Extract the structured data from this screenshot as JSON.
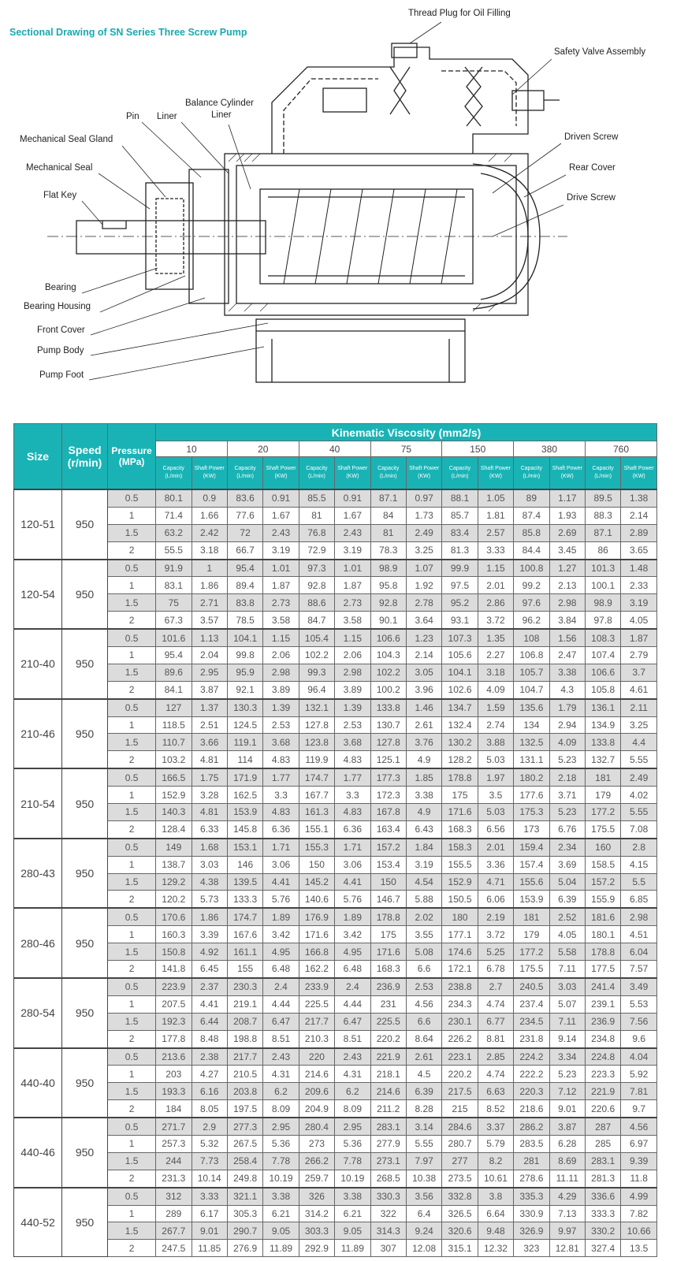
{
  "title": "Sectional Drawing of SN Series Three Screw Pump",
  "drawing": {
    "labels": [
      "Thread Plug for Oil Filling",
      "Safety Valve Assembly",
      "Balance Cylinder",
      "Liner",
      "Pin",
      "Liner",
      "Driven Screw",
      "Mechanical Seal Gland",
      "Mechanical Seal",
      "Rear Cover",
      "Flat Key",
      "Drive Screw",
      "Bearing",
      "Bearing Housing",
      "Front Cover",
      "Pump Body",
      "Pump Foot"
    ]
  },
  "table": {
    "headers": {
      "size": "Size",
      "speed": "Speed (r/min)",
      "pressure": "Pressure (MPa)",
      "viscosity": "Kinematic Viscosity (mm2/s)",
      "capacity": "Capacity (L/min)",
      "shaft_power": "Shaft Power (KW)"
    },
    "viscosities": [
      "10",
      "20",
      "40",
      "75",
      "150",
      "380",
      "760"
    ],
    "groups": [
      {
        "size": "120-51",
        "speed": "950",
        "rows": [
          [
            "0.5",
            "80.1",
            "0.9",
            "83.6",
            "0.91",
            "85.5",
            "0.91",
            "87.1",
            "0.97",
            "88.1",
            "1.05",
            "89",
            "1.17",
            "89.5",
            "1.38"
          ],
          [
            "1",
            "71.4",
            "1.66",
            "77.6",
            "1.67",
            "81",
            "1.67",
            "84",
            "1.73",
            "85.7",
            "1.81",
            "87.4",
            "1.93",
            "88.3",
            "2.14"
          ],
          [
            "1.5",
            "63.2",
            "2.42",
            "72",
            "2.43",
            "76.8",
            "2.43",
            "81",
            "2.49",
            "83.4",
            "2.57",
            "85.8",
            "2.69",
            "87.1",
            "2.89"
          ],
          [
            "2",
            "55.5",
            "3.18",
            "66.7",
            "3.19",
            "72.9",
            "3.19",
            "78.3",
            "3.25",
            "81.3",
            "3.33",
            "84.4",
            "3.45",
            "86",
            "3.65"
          ]
        ]
      },
      {
        "size": "120-54",
        "speed": "950",
        "rows": [
          [
            "0.5",
            "91.9",
            "1",
            "95.4",
            "1.01",
            "97.3",
            "1.01",
            "98.9",
            "1.07",
            "99.9",
            "1.15",
            "100.8",
            "1.27",
            "101.3",
            "1.48"
          ],
          [
            "1",
            "83.1",
            "1.86",
            "89.4",
            "1.87",
            "92.8",
            "1.87",
            "95.8",
            "1.92",
            "97.5",
            "2.01",
            "99.2",
            "2.13",
            "100.1",
            "2.33"
          ],
          [
            "1.5",
            "75",
            "2.71",
            "83.8",
            "2.73",
            "88.6",
            "2.73",
            "92.8",
            "2.78",
            "95.2",
            "2.86",
            "97.6",
            "2.98",
            "98.9",
            "3.19"
          ],
          [
            "2",
            "67.3",
            "3.57",
            "78.5",
            "3.58",
            "84.7",
            "3.58",
            "90.1",
            "3.64",
            "93.1",
            "3.72",
            "96.2",
            "3.84",
            "97.8",
            "4.05"
          ]
        ]
      },
      {
        "size": "210-40",
        "speed": "950",
        "rows": [
          [
            "0.5",
            "101.6",
            "1.13",
            "104.1",
            "1.15",
            "105.4",
            "1.15",
            "106.6",
            "1.23",
            "107.3",
            "1.35",
            "108",
            "1.56",
            "108.3",
            "1.87"
          ],
          [
            "1",
            "95.4",
            "2.04",
            "99.8",
            "2.06",
            "102.2",
            "2.06",
            "104.3",
            "2.14",
            "105.6",
            "2.27",
            "106.8",
            "2.47",
            "107.4",
            "2.79"
          ],
          [
            "1.5",
            "89.6",
            "2.95",
            "95.9",
            "2.98",
            "99.3",
            "2.98",
            "102.2",
            "3.05",
            "104.1",
            "3.18",
            "105.7",
            "3.38",
            "106.6",
            "3.7"
          ],
          [
            "2",
            "84.1",
            "3.87",
            "92.1",
            "3.89",
            "96.4",
            "3.89",
            "100.2",
            "3.96",
            "102.6",
            "4.09",
            "104.7",
            "4.3",
            "105.8",
            "4.61"
          ]
        ]
      },
      {
        "size": "210-46",
        "speed": "950",
        "rows": [
          [
            "0.5",
            "127",
            "1.37",
            "130.3",
            "1.39",
            "132.1",
            "1.39",
            "133.8",
            "1.46",
            "134.7",
            "1.59",
            "135.6",
            "1.79",
            "136.1",
            "2.11"
          ],
          [
            "1",
            "118.5",
            "2.51",
            "124.5",
            "2.53",
            "127.8",
            "2.53",
            "130.7",
            "2.61",
            "132.4",
            "2.74",
            "134",
            "2.94",
            "134.9",
            "3.25"
          ],
          [
            "1.5",
            "110.7",
            "3.66",
            "119.1",
            "3.68",
            "123.8",
            "3.68",
            "127.8",
            "3.76",
            "130.2",
            "3.88",
            "132.5",
            "4.09",
            "133.8",
            "4.4"
          ],
          [
            "2",
            "103.2",
            "4.81",
            "114",
            "4.83",
            "119.9",
            "4.83",
            "125.1",
            "4.9",
            "128.2",
            "5.03",
            "131.1",
            "5.23",
            "132.7",
            "5.55"
          ]
        ]
      },
      {
        "size": "210-54",
        "speed": "950",
        "rows": [
          [
            "0.5",
            "166.5",
            "1.75",
            "171.9",
            "1.77",
            "174.7",
            "1.77",
            "177.3",
            "1.85",
            "178.8",
            "1.97",
            "180.2",
            "2.18",
            "181",
            "2.49"
          ],
          [
            "1",
            "152.9",
            "3.28",
            "162.5",
            "3.3",
            "167.7",
            "3.3",
            "172.3",
            "3.38",
            "175",
            "3.5",
            "177.6",
            "3.71",
            "179",
            "4.02"
          ],
          [
            "1.5",
            "140.3",
            "4.81",
            "153.9",
            "4.83",
            "161.3",
            "4.83",
            "167.8",
            "4.9",
            "171.6",
            "5.03",
            "175.3",
            "5.23",
            "177.2",
            "5.55"
          ],
          [
            "2",
            "128.4",
            "6.33",
            "145.8",
            "6.36",
            "155.1",
            "6.36",
            "163.4",
            "6.43",
            "168.3",
            "6.56",
            "173",
            "6.76",
            "175.5",
            "7.08"
          ]
        ]
      },
      {
        "size": "280-43",
        "speed": "950",
        "rows": [
          [
            "0.5",
            "149",
            "1.68",
            "153.1",
            "1.71",
            "155.3",
            "1.71",
            "157.2",
            "1.84",
            "158.3",
            "2.01",
            "159.4",
            "2.34",
            "160",
            "2.8"
          ],
          [
            "1",
            "138.7",
            "3.03",
            "146",
            "3.06",
            "150",
            "3.06",
            "153.4",
            "3.19",
            "155.5",
            "3.36",
            "157.4",
            "3.69",
            "158.5",
            "4.15"
          ],
          [
            "1.5",
            "129.2",
            "4.38",
            "139.5",
            "4.41",
            "145.2",
            "4.41",
            "150",
            "4.54",
            "152.9",
            "4.71",
            "155.6",
            "5.04",
            "157.2",
            "5.5"
          ],
          [
            "2",
            "120.2",
            "5.73",
            "133.3",
            "5.76",
            "140.6",
            "5.76",
            "146.7",
            "5.88",
            "150.5",
            "6.06",
            "153.9",
            "6.39",
            "155.9",
            "6.85"
          ]
        ]
      },
      {
        "size": "280-46",
        "speed": "950",
        "rows": [
          [
            "0.5",
            "170.6",
            "1.86",
            "174.7",
            "1.89",
            "176.9",
            "1.89",
            "178.8",
            "2.02",
            "180",
            "2.19",
            "181",
            "2.52",
            "181.6",
            "2.98"
          ],
          [
            "1",
            "160.3",
            "3.39",
            "167.6",
            "3.42",
            "171.6",
            "3.42",
            "175",
            "3.55",
            "177.1",
            "3.72",
            "179",
            "4.05",
            "180.1",
            "4.51"
          ],
          [
            "1.5",
            "150.8",
            "4.92",
            "161.1",
            "4.95",
            "166.8",
            "4.95",
            "171.6",
            "5.08",
            "174.6",
            "5.25",
            "177.2",
            "5.58",
            "178.8",
            "6.04"
          ],
          [
            "2",
            "141.8",
            "6.45",
            "155",
            "6.48",
            "162.2",
            "6.48",
            "168.3",
            "6.6",
            "172.1",
            "6.78",
            "175.5",
            "7.11",
            "177.5",
            "7.57"
          ]
        ]
      },
      {
        "size": "280-54",
        "speed": "950",
        "rows": [
          [
            "0.5",
            "223.9",
            "2.37",
            "230.3",
            "2.4",
            "233.9",
            "2.4",
            "236.9",
            "2.53",
            "238.8",
            "2.7",
            "240.5",
            "3.03",
            "241.4",
            "3.49"
          ],
          [
            "1",
            "207.5",
            "4.41",
            "219.1",
            "4.44",
            "225.5",
            "4.44",
            "231",
            "4.56",
            "234.3",
            "4.74",
            "237.4",
            "5.07",
            "239.1",
            "5.53"
          ],
          [
            "1.5",
            "192.3",
            "6.44",
            "208.7",
            "6.47",
            "217.7",
            "6.47",
            "225.5",
            "6.6",
            "230.1",
            "6.77",
            "234.5",
            "7.11",
            "236.9",
            "7.56"
          ],
          [
            "2",
            "177.8",
            "8.48",
            "198.8",
            "8.51",
            "210.3",
            "8.51",
            "220.2",
            "8.64",
            "226.2",
            "8.81",
            "231.8",
            "9.14",
            "234.8",
            "9.6"
          ]
        ]
      },
      {
        "size": "440-40",
        "speed": "950",
        "rows": [
          [
            "0.5",
            "213.6",
            "2.38",
            "217.7",
            "2.43",
            "220",
            "2.43",
            "221.9",
            "2.61",
            "223.1",
            "2.85",
            "224.2",
            "3.34",
            "224.8",
            "4.04"
          ],
          [
            "1",
            "203",
            "4.27",
            "210.5",
            "4.31",
            "214.6",
            "4.31",
            "218.1",
            "4.5",
            "220.2",
            "4.74",
            "222.2",
            "5.23",
            "223.3",
            "5.92"
          ],
          [
            "1.5",
            "193.3",
            "6.16",
            "203.8",
            "6.2",
            "209.6",
            "6.2",
            "214.6",
            "6.39",
            "217.5",
            "6.63",
            "220.3",
            "7.12",
            "221.9",
            "7.81"
          ],
          [
            "2",
            "184",
            "8.05",
            "197.5",
            "8.09",
            "204.9",
            "8.09",
            "211.2",
            "8.28",
            "215",
            "8.52",
            "218.6",
            "9.01",
            "220.6",
            "9.7"
          ]
        ]
      },
      {
        "size": "440-46",
        "speed": "950",
        "rows": [
          [
            "0.5",
            "271.7",
            "2.9",
            "277.3",
            "2.95",
            "280.4",
            "2.95",
            "283.1",
            "3.14",
            "284.6",
            "3.37",
            "286.2",
            "3.87",
            "287",
            "4.56"
          ],
          [
            "1",
            "257.3",
            "5.32",
            "267.5",
            "5.36",
            "273",
            "5.36",
            "277.9",
            "5.55",
            "280.7",
            "5.79",
            "283.5",
            "6.28",
            "285",
            "6.97"
          ],
          [
            "1.5",
            "244",
            "7.73",
            "258.4",
            "7.78",
            "266.2",
            "7.78",
            "273.1",
            "7.97",
            "277",
            "8.2",
            "281",
            "8.69",
            "283.1",
            "9.39"
          ],
          [
            "2",
            "231.3",
            "10.14",
            "249.8",
            "10.19",
            "259.7",
            "10.19",
            "268.5",
            "10.38",
            "273.5",
            "10.61",
            "278.6",
            "11.11",
            "281.3",
            "11.8"
          ]
        ]
      },
      {
        "size": "440-52",
        "speed": "950",
        "rows": [
          [
            "0.5",
            "312",
            "3.33",
            "321.1",
            "3.38",
            "326",
            "3.38",
            "330.3",
            "3.56",
            "332.8",
            "3.8",
            "335.3",
            "4.29",
            "336.6",
            "4.99"
          ],
          [
            "1",
            "289",
            "6.17",
            "305.3",
            "6.21",
            "314.2",
            "6.21",
            "322",
            "6.4",
            "326.5",
            "6.64",
            "330.9",
            "7.13",
            "333.3",
            "7.82"
          ],
          [
            "1.5",
            "267.7",
            "9.01",
            "290.7",
            "9.05",
            "303.3",
            "9.05",
            "314.3",
            "9.24",
            "320.6",
            "9.48",
            "326.9",
            "9.97",
            "330.2",
            "10.66"
          ],
          [
            "2",
            "247.5",
            "11.85",
            "276.9",
            "11.89",
            "292.9",
            "11.89",
            "307",
            "12.08",
            "315.1",
            "12.32",
            "323",
            "12.81",
            "327.4",
            "13.5"
          ]
        ]
      }
    ]
  }
}
